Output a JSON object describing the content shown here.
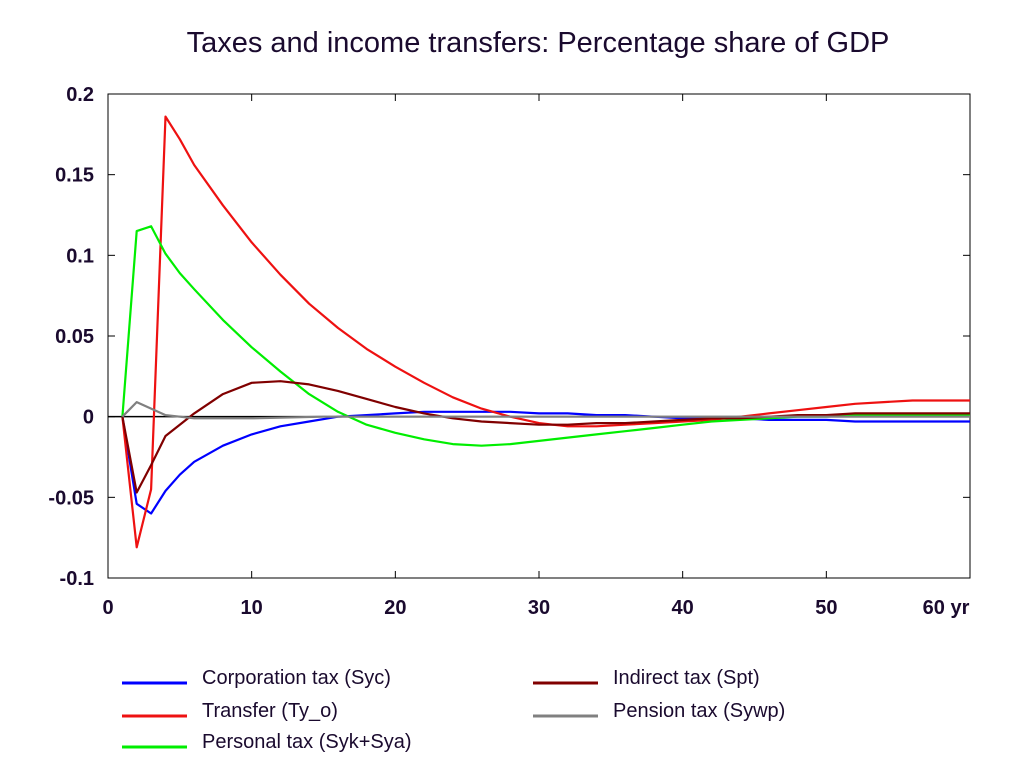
{
  "chart_data": {
    "type": "line",
    "title": "Taxes and income transfers: Percentage share of GDP",
    "xlabel": "",
    "ylabel": "",
    "xlim": [
      0,
      60
    ],
    "ylim": [
      -0.1,
      0.2
    ],
    "x_ticks": [
      0,
      10,
      20,
      30,
      40,
      50,
      60
    ],
    "x_tick_labels": [
      "0",
      "10",
      "20",
      "30",
      "40",
      "50",
      "60 yr"
    ],
    "y_ticks": [
      -0.1,
      -0.05,
      0,
      0.05,
      0.1,
      0.15,
      0.2
    ],
    "y_tick_labels": [
      "-0.1",
      "-0.05",
      "0",
      "0.05",
      "0.1",
      "0.15",
      "0.2"
    ],
    "grid": false,
    "legend_position": "bottom",
    "series": [
      {
        "name": "Corporation tax (Syc)",
        "color": "#0000ff",
        "points": [
          [
            1,
            0
          ],
          [
            2,
            -0.054
          ],
          [
            3,
            -0.06
          ],
          [
            4,
            -0.046
          ],
          [
            5,
            -0.036
          ],
          [
            6,
            -0.028
          ],
          [
            8,
            -0.018
          ],
          [
            10,
            -0.011
          ],
          [
            12,
            -0.006
          ],
          [
            14,
            -0.003
          ],
          [
            16,
            0
          ],
          [
            18,
            0.001
          ],
          [
            20,
            0.002
          ],
          [
            22,
            0.003
          ],
          [
            24,
            0.003
          ],
          [
            26,
            0.003
          ],
          [
            28,
            0.003
          ],
          [
            30,
            0.002
          ],
          [
            32,
            0.002
          ],
          [
            34,
            0.001
          ],
          [
            36,
            0.001
          ],
          [
            38,
            0
          ],
          [
            40,
            -0.001
          ],
          [
            42,
            -0.001
          ],
          [
            44,
            -0.001
          ],
          [
            46,
            -0.002
          ],
          [
            48,
            -0.002
          ],
          [
            50,
            -0.002
          ],
          [
            52,
            -0.003
          ],
          [
            54,
            -0.003
          ],
          [
            56,
            -0.003
          ],
          [
            58,
            -0.003
          ],
          [
            60,
            -0.003
          ]
        ]
      },
      {
        "name": "Transfer (Ty_o)",
        "color": "#ee1111",
        "points": [
          [
            1,
            0
          ],
          [
            2,
            -0.081
          ],
          [
            3,
            -0.045
          ],
          [
            4,
            0.186
          ],
          [
            5,
            0.172
          ],
          [
            6,
            0.156
          ],
          [
            8,
            0.131
          ],
          [
            10,
            0.108
          ],
          [
            12,
            0.088
          ],
          [
            14,
            0.07
          ],
          [
            16,
            0.055
          ],
          [
            18,
            0.042
          ],
          [
            20,
            0.031
          ],
          [
            22,
            0.021
          ],
          [
            24,
            0.012
          ],
          [
            26,
            0.005
          ],
          [
            28,
            0
          ],
          [
            30,
            -0.004
          ],
          [
            32,
            -0.006
          ],
          [
            34,
            -0.006
          ],
          [
            36,
            -0.005
          ],
          [
            38,
            -0.004
          ],
          [
            40,
            -0.003
          ],
          [
            42,
            -0.002
          ],
          [
            44,
            0
          ],
          [
            46,
            0.002
          ],
          [
            48,
            0.004
          ],
          [
            50,
            0.006
          ],
          [
            52,
            0.008
          ],
          [
            54,
            0.009
          ],
          [
            56,
            0.01
          ],
          [
            58,
            0.01
          ],
          [
            60,
            0.01
          ]
        ]
      },
      {
        "name": "Personal tax (Syk+Sya)",
        "color": "#00ee00",
        "points": [
          [
            1,
            0
          ],
          [
            2,
            0.115
          ],
          [
            3,
            0.118
          ],
          [
            4,
            0.101
          ],
          [
            5,
            0.089
          ],
          [
            6,
            0.079
          ],
          [
            8,
            0.06
          ],
          [
            10,
            0.043
          ],
          [
            12,
            0.028
          ],
          [
            14,
            0.014
          ],
          [
            16,
            0.003
          ],
          [
            18,
            -0.005
          ],
          [
            20,
            -0.01
          ],
          [
            22,
            -0.014
          ],
          [
            24,
            -0.017
          ],
          [
            26,
            -0.018
          ],
          [
            28,
            -0.017
          ],
          [
            30,
            -0.015
          ],
          [
            32,
            -0.013
          ],
          [
            34,
            -0.011
          ],
          [
            36,
            -0.009
          ],
          [
            38,
            -0.007
          ],
          [
            40,
            -0.005
          ],
          [
            42,
            -0.003
          ],
          [
            44,
            -0.002
          ],
          [
            46,
            -0.001
          ],
          [
            48,
            0
          ],
          [
            50,
            0
          ],
          [
            52,
            0.001
          ],
          [
            54,
            0.001
          ],
          [
            56,
            0.001
          ],
          [
            58,
            0.001
          ],
          [
            60,
            0.001
          ]
        ]
      },
      {
        "name": "Indirect tax (Spt)",
        "color": "#800000",
        "points": [
          [
            1,
            0
          ],
          [
            2,
            -0.047
          ],
          [
            3,
            -0.03
          ],
          [
            4,
            -0.012
          ],
          [
            5,
            -0.005
          ],
          [
            6,
            0.002
          ],
          [
            8,
            0.014
          ],
          [
            10,
            0.021
          ],
          [
            12,
            0.022
          ],
          [
            14,
            0.02
          ],
          [
            16,
            0.016
          ],
          [
            18,
            0.011
          ],
          [
            20,
            0.006
          ],
          [
            22,
            0.002
          ],
          [
            24,
            -0.001
          ],
          [
            26,
            -0.003
          ],
          [
            28,
            -0.004
          ],
          [
            30,
            -0.005
          ],
          [
            32,
            -0.005
          ],
          [
            34,
            -0.004
          ],
          [
            36,
            -0.004
          ],
          [
            38,
            -0.003
          ],
          [
            40,
            -0.002
          ],
          [
            42,
            -0.001
          ],
          [
            44,
            -0.001
          ],
          [
            46,
            0
          ],
          [
            48,
            0.001
          ],
          [
            50,
            0.001
          ],
          [
            52,
            0.002
          ],
          [
            54,
            0.002
          ],
          [
            56,
            0.002
          ],
          [
            58,
            0.002
          ],
          [
            60,
            0.002
          ]
        ]
      },
      {
        "name": "Pension tax (Sywp)",
        "color": "#808080",
        "points": [
          [
            1,
            0
          ],
          [
            2,
            0.009
          ],
          [
            3,
            0.005
          ],
          [
            4,
            0.001
          ],
          [
            5,
            0
          ],
          [
            6,
            -0.001
          ],
          [
            8,
            -0.001
          ],
          [
            10,
            -0.001
          ],
          [
            15,
            0
          ],
          [
            20,
            0
          ],
          [
            30,
            0
          ],
          [
            40,
            0
          ],
          [
            50,
            0
          ],
          [
            60,
            0
          ]
        ]
      }
    ],
    "legend_layout": [
      {
        "series": 0,
        "column": 0,
        "row": 0
      },
      {
        "series": 3,
        "column": 1,
        "row": 0
      },
      {
        "series": 1,
        "column": 0,
        "row": 1
      },
      {
        "series": 4,
        "column": 1,
        "row": 1
      },
      {
        "series": 2,
        "column": 0,
        "row": 2
      }
    ]
  }
}
